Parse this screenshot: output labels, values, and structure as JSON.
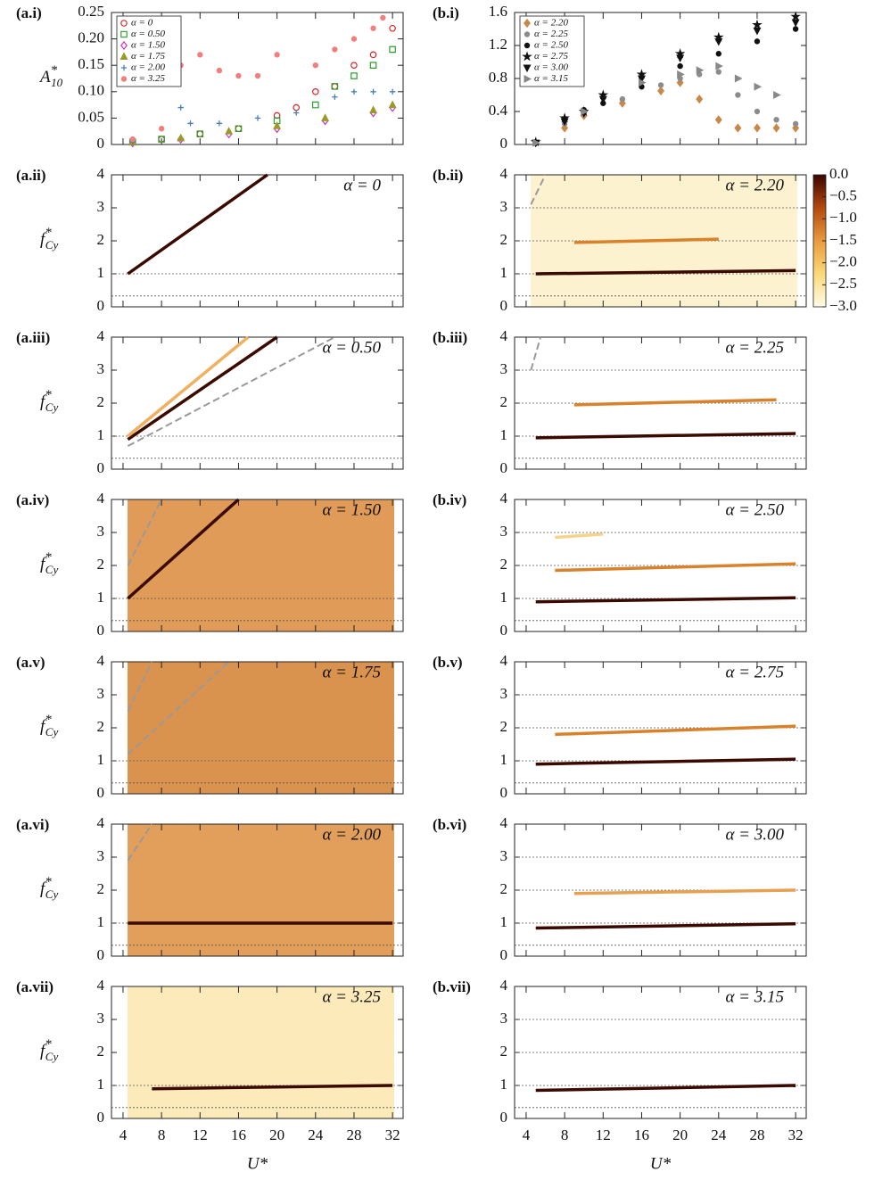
{
  "chart_data": [
    {
      "type": "scatter",
      "panel": "(a.i)",
      "ylabel": "A",
      "ylabel_sup": "*",
      "ylabel_sub": "10",
      "xlim": [
        2.8,
        33.1
      ],
      "xticks": [
        4,
        8,
        12,
        16,
        20,
        24,
        28,
        32
      ],
      "ylim": [
        0,
        0.25
      ],
      "yticks": [
        0,
        0.05,
        {
          "value": 0.1,
          "label": "0.10"
        },
        0.15,
        {
          "value": 0.2,
          "label": "0.20"
        },
        0.25
      ],
      "legend": "top-left",
      "series": [
        {
          "name": "α = 0",
          "color": "#d62728",
          "marker": "circle-open",
          "x": [
            5,
            8,
            12,
            16,
            20,
            22,
            24,
            26,
            28,
            30,
            32
          ],
          "values": [
            0.005,
            0.01,
            0.02,
            0.03,
            0.055,
            0.07,
            0.1,
            0.11,
            0.15,
            0.17,
            0.22
          ]
        },
        {
          "name": "α = 0.50",
          "color": "#2ca02c",
          "marker": "square-open",
          "x": [
            5,
            8,
            12,
            16,
            20,
            24,
            26,
            28,
            30,
            32
          ],
          "values": [
            0.005,
            0.01,
            0.02,
            0.03,
            0.045,
            0.075,
            0.11,
            0.13,
            0.15,
            0.18
          ]
        },
        {
          "name": "α = 1.50",
          "color": "#cc33cc",
          "marker": "diamond-open",
          "x": [
            5,
            10,
            15,
            20,
            25,
            30,
            32
          ],
          "values": [
            0.003,
            0.01,
            0.02,
            0.03,
            0.045,
            0.06,
            0.07
          ]
        },
        {
          "name": "α = 1.75",
          "color": "#9a9a2a",
          "marker": "triangle",
          "x": [
            5,
            10,
            15,
            20,
            25,
            30,
            32
          ],
          "values": [
            0.004,
            0.012,
            0.025,
            0.035,
            0.05,
            0.065,
            0.075
          ]
        },
        {
          "name": "α = 2.00",
          "color": "#4a7fb5",
          "marker": "plus",
          "x": [
            5,
            10,
            11,
            14,
            18,
            22,
            26,
            28,
            30,
            32
          ],
          "values": [
            0.005,
            0.07,
            0.04,
            0.04,
            0.05,
            0.06,
            0.09,
            0.1,
            0.1,
            0.1
          ]
        },
        {
          "name": "α = 3.25",
          "color": "#f08080",
          "marker": "dot",
          "x": [
            5,
            8,
            10,
            12,
            14,
            16,
            18,
            20,
            24,
            26,
            28,
            30,
            31
          ],
          "values": [
            0.01,
            0.03,
            0.15,
            0.17,
            0.14,
            0.13,
            0.13,
            0.17,
            0.15,
            0.18,
            0.2,
            0.22,
            0.24
          ]
        }
      ]
    },
    {
      "type": "scatter",
      "panel": "(b.i)",
      "xlim": [
        2.8,
        33.1
      ],
      "xticks": [
        4,
        8,
        12,
        16,
        20,
        24,
        28,
        32
      ],
      "ylim": [
        0,
        1.6
      ],
      "yticks": [
        0,
        0.4,
        0.8,
        1.2,
        1.6
      ],
      "legend": "top-left",
      "series": [
        {
          "name": "α = 2.20",
          "color": "#c8884a",
          "marker": "diamond",
          "x": [
            5,
            8,
            10,
            14,
            18,
            20,
            22,
            24,
            26,
            28,
            30,
            32
          ],
          "values": [
            0.02,
            0.2,
            0.35,
            0.5,
            0.65,
            0.75,
            0.55,
            0.3,
            0.2,
            0.2,
            0.2,
            0.2
          ]
        },
        {
          "name": "α = 2.25",
          "color": "#8c8c8c",
          "marker": "dot",
          "x": [
            5,
            8,
            10,
            14,
            18,
            20,
            22,
            24,
            26,
            28,
            30,
            32
          ],
          "values": [
            0.02,
            0.25,
            0.38,
            0.55,
            0.72,
            0.8,
            0.85,
            0.88,
            0.6,
            0.4,
            0.3,
            0.25
          ]
        },
        {
          "name": "α = 2.50",
          "color": "#111111",
          "marker": "dot",
          "x": [
            5,
            8,
            10,
            12,
            16,
            20,
            24,
            28,
            32
          ],
          "values": [
            0.02,
            0.3,
            0.42,
            0.5,
            0.7,
            0.95,
            1.1,
            1.25,
            1.4
          ]
        },
        {
          "name": "α = 2.75",
          "color": "#111111",
          "marker": "star",
          "x": [
            5,
            8,
            10,
            12,
            16,
            20,
            24,
            28,
            32
          ],
          "values": [
            0.03,
            0.32,
            0.4,
            0.6,
            0.85,
            1.1,
            1.3,
            1.45,
            1.55
          ]
        },
        {
          "name": "α = 3.00",
          "color": "#111111",
          "marker": "triangle-down",
          "x": [
            5,
            8,
            10,
            12,
            16,
            20,
            24,
            28,
            32
          ],
          "values": [
            0.02,
            0.28,
            0.38,
            0.55,
            0.8,
            1.05,
            1.25,
            1.38,
            1.48
          ]
        },
        {
          "name": "α = 3.15",
          "color": "#888888",
          "marker": "triangle-right",
          "x": [
            5,
            10,
            16,
            20,
            22,
            24,
            26,
            28,
            30
          ],
          "values": [
            0.02,
            0.4,
            0.75,
            0.85,
            0.9,
            0.95,
            0.8,
            0.7,
            0.6
          ]
        }
      ]
    },
    {
      "type": "spectrogram",
      "panel": "(a.ii)",
      "annotation": "α = 0",
      "ylabel": "f",
      "ylabel_sup": "*",
      "ylabel_sub": "Cy",
      "xlim": [
        2.8,
        33.1
      ],
      "xticks": [
        4,
        8,
        12,
        16,
        20,
        24,
        28,
        32
      ],
      "ylim": [
        0,
        4
      ],
      "yticks": [
        0,
        1,
        2,
        3,
        4
      ],
      "hlines": [
        1,
        0.33
      ],
      "traces": [
        {
          "color": "#3a0a00",
          "dash": false,
          "x": [
            4.5,
            19
          ],
          "values": [
            1,
            4
          ]
        }
      ]
    },
    {
      "type": "spectrogram",
      "panel": "(b.ii)",
      "annotation": "α = 2.20",
      "xlim": [
        2.8,
        33.1
      ],
      "xticks": [
        4,
        8,
        12,
        16,
        20,
        24,
        28,
        32
      ],
      "ylim": [
        0,
        4
      ],
      "yticks": [
        0,
        1,
        2,
        3,
        4
      ],
      "hlines": [
        1,
        0.33,
        2,
        3
      ],
      "background": "#fdf0c8",
      "traces": [
        {
          "color": "#3a0a00",
          "dash": false,
          "x": [
            5,
            32
          ],
          "values": [
            1,
            1.1
          ]
        },
        {
          "color": "#d9822b",
          "dash": false,
          "x": [
            9,
            24
          ],
          "values": [
            1.95,
            2.05
          ]
        },
        {
          "color": "#999999",
          "dash": true,
          "x": [
            4.5,
            6
          ],
          "values": [
            3.1,
            4
          ]
        }
      ],
      "colorbar": {
        "lim": [
          -3,
          0
        ],
        "colors": [
          "#fffbe6",
          "#fbd97a",
          "#e99a3c",
          "#b4490f",
          "#3a0500"
        ],
        "ticks": [
          {
            "value": 0,
            "label": "0.0"
          },
          {
            "value": -0.5,
            "label": "−0.5"
          },
          {
            "value": -1,
            "label": "−1.0"
          },
          {
            "value": -1.5,
            "label": "−1.5"
          },
          {
            "value": -2,
            "label": "−2.0"
          },
          {
            "value": -2.5,
            "label": "−2.5"
          },
          {
            "value": -3,
            "label": "−3.0"
          }
        ]
      }
    },
    {
      "type": "spectrogram",
      "panel": "(a.iii)",
      "annotation": "α = 0.50",
      "ylabel": "f",
      "ylabel_sup": "*",
      "ylabel_sub": "Cy",
      "xlim": [
        2.8,
        33.1
      ],
      "xticks": [
        4,
        8,
        12,
        16,
        20,
        24,
        28,
        32
      ],
      "ylim": [
        0,
        4
      ],
      "yticks": [
        0,
        1,
        2,
        3,
        4
      ],
      "hlines": [
        1,
        0.33
      ],
      "traces": [
        {
          "color": "#3a0a00",
          "dash": false,
          "x": [
            4.5,
            20
          ],
          "values": [
            0.9,
            4
          ]
        },
        {
          "color": "#f0b060",
          "dash": false,
          "x": [
            4.5,
            17
          ],
          "values": [
            1,
            4
          ]
        },
        {
          "color": "#999999",
          "dash": true,
          "x": [
            4.5,
            26
          ],
          "values": [
            0.7,
            4
          ]
        }
      ]
    },
    {
      "type": "spectrogram",
      "panel": "(b.iii)",
      "annotation": "α = 2.25",
      "xlim": [
        2.8,
        33.1
      ],
      "xticks": [
        4,
        8,
        12,
        16,
        20,
        24,
        28,
        32
      ],
      "ylim": [
        0,
        4
      ],
      "yticks": [
        0,
        1,
        2,
        3,
        4
      ],
      "hlines": [
        1,
        0.33,
        2,
        3
      ],
      "traces": [
        {
          "color": "#3a0a00",
          "dash": false,
          "x": [
            5,
            32
          ],
          "values": [
            0.95,
            1.08
          ]
        },
        {
          "color": "#d9822b",
          "dash": false,
          "x": [
            9,
            30
          ],
          "values": [
            1.95,
            2.1
          ]
        },
        {
          "color": "#999999",
          "dash": true,
          "x": [
            4.5,
            5.5
          ],
          "values": [
            3,
            4
          ]
        }
      ]
    },
    {
      "type": "spectrogram",
      "panel": "(a.iv)",
      "annotation": "α = 1.50",
      "ylabel": "f",
      "ylabel_sup": "*",
      "ylabel_sub": "Cy",
      "xlim": [
        2.8,
        33.1
      ],
      "xticks": [
        4,
        8,
        12,
        16,
        20,
        24,
        28,
        32
      ],
      "ylim": [
        0,
        4
      ],
      "yticks": [
        0,
        1,
        2,
        3,
        4
      ],
      "hlines": [
        1,
        0.33
      ],
      "background": "#d98a3a",
      "traces": [
        {
          "color": "#3a0a00",
          "dash": false,
          "x": [
            4.5,
            16
          ],
          "values": [
            1,
            4
          ]
        },
        {
          "color": "#999999",
          "dash": true,
          "x": [
            4.5,
            8
          ],
          "values": [
            2,
            4
          ]
        }
      ]
    },
    {
      "type": "spectrogram",
      "panel": "(b.iv)",
      "annotation": "α = 2.50",
      "xlim": [
        2.8,
        33.1
      ],
      "xticks": [
        4,
        8,
        12,
        16,
        20,
        24,
        28,
        32
      ],
      "ylim": [
        0,
        4
      ],
      "yticks": [
        0,
        1,
        2,
        3,
        4
      ],
      "hlines": [
        1,
        0.33,
        2,
        3
      ],
      "traces": [
        {
          "color": "#3a0a00",
          "dash": false,
          "x": [
            5,
            32
          ],
          "values": [
            0.9,
            1.02
          ]
        },
        {
          "color": "#d9822b",
          "dash": false,
          "x": [
            7,
            32
          ],
          "values": [
            1.85,
            2.05
          ]
        },
        {
          "color": "#f5d38a",
          "dash": false,
          "x": [
            7,
            12
          ],
          "values": [
            2.85,
            2.95
          ]
        }
      ]
    },
    {
      "type": "spectrogram",
      "panel": "(a.v)",
      "annotation": "α = 1.75",
      "ylabel": "f",
      "ylabel_sup": "*",
      "ylabel_sub": "Cy",
      "xlim": [
        2.8,
        33.1
      ],
      "xticks": [
        4,
        8,
        12,
        16,
        20,
        24,
        28,
        32
      ],
      "ylim": [
        0,
        4
      ],
      "yticks": [
        0,
        1,
        2,
        3,
        4
      ],
      "hlines": [
        1,
        0.33
      ],
      "background": "#d37f30",
      "traces": [
        {
          "color": "#999999",
          "dash": true,
          "x": [
            4.5,
            15
          ],
          "values": [
            1.2,
            4
          ]
        },
        {
          "color": "#999999",
          "dash": true,
          "x": [
            4.5,
            7
          ],
          "values": [
            2.5,
            4
          ]
        }
      ]
    },
    {
      "type": "spectrogram",
      "panel": "(b.v)",
      "annotation": "α = 2.75",
      "xlim": [
        2.8,
        33.1
      ],
      "xticks": [
        4,
        8,
        12,
        16,
        20,
        24,
        28,
        32
      ],
      "ylim": [
        0,
        4
      ],
      "yticks": [
        0,
        1,
        2,
        3,
        4
      ],
      "hlines": [
        1,
        0.33,
        2,
        3
      ],
      "traces": [
        {
          "color": "#3a0a00",
          "dash": false,
          "x": [
            5,
            32
          ],
          "values": [
            0.9,
            1.05
          ]
        },
        {
          "color": "#d9822b",
          "dash": false,
          "x": [
            7,
            32
          ],
          "values": [
            1.8,
            2.05
          ]
        }
      ]
    },
    {
      "type": "spectrogram",
      "panel": "(a.vi)",
      "annotation": "α = 2.00",
      "ylabel": "f",
      "ylabel_sup": "*",
      "ylabel_sub": "Cy",
      "xlim": [
        2.8,
        33.1
      ],
      "xticks": [
        4,
        8,
        12,
        16,
        20,
        24,
        28,
        32
      ],
      "ylim": [
        0,
        4
      ],
      "yticks": [
        0,
        1,
        2,
        3,
        4
      ],
      "hlines": [
        1,
        0.33
      ],
      "background": "#dc8e3e",
      "traces": [
        {
          "color": "#3a0a00",
          "dash": false,
          "x": [
            4.5,
            32
          ],
          "values": [
            1,
            1
          ]
        },
        {
          "color": "#999999",
          "dash": true,
          "x": [
            4.5,
            7
          ],
          "values": [
            2.9,
            4
          ]
        }
      ]
    },
    {
      "type": "spectrogram",
      "panel": "(b.vi)",
      "annotation": "α = 3.00",
      "xlim": [
        2.8,
        33.1
      ],
      "xticks": [
        4,
        8,
        12,
        16,
        20,
        24,
        28,
        32
      ],
      "ylim": [
        0,
        4
      ],
      "yticks": [
        0,
        1,
        2,
        3,
        4
      ],
      "hlines": [
        1,
        0.33,
        2,
        3
      ],
      "traces": [
        {
          "color": "#3a0a00",
          "dash": false,
          "x": [
            5,
            32
          ],
          "values": [
            0.85,
            0.98
          ]
        },
        {
          "color": "#e6a050",
          "dash": false,
          "x": [
            9,
            32
          ],
          "values": [
            1.9,
            2
          ]
        }
      ]
    },
    {
      "type": "spectrogram",
      "panel": "(a.vii)",
      "annotation": "α = 3.25",
      "ylabel": "f",
      "ylabel_sup": "*",
      "ylabel_sub": "Cy",
      "xlabel": "U*",
      "xlim": [
        2.8,
        33.1
      ],
      "xticks": [
        4,
        8,
        12,
        16,
        20,
        24,
        28,
        32
      ],
      "ylim": [
        0,
        4
      ],
      "yticks": [
        0,
        1,
        2,
        3,
        4
      ],
      "hlines": [
        1,
        0.33
      ],
      "background": "#fbe6ae",
      "traces": [
        {
          "color": "#3a0a00",
          "dash": false,
          "x": [
            7,
            32
          ],
          "values": [
            0.9,
            1
          ]
        }
      ]
    },
    {
      "type": "spectrogram",
      "panel": "(b.vii)",
      "annotation": "α = 3.15",
      "xlabel": "U*",
      "xlim": [
        2.8,
        33.1
      ],
      "xticks": [
        4,
        8,
        12,
        16,
        20,
        24,
        28,
        32
      ],
      "ylim": [
        0,
        4
      ],
      "yticks": [
        0,
        1,
        2,
        3,
        4
      ],
      "hlines": [
        1,
        0.33,
        2,
        3
      ],
      "traces": [
        {
          "color": "#3a0a00",
          "dash": false,
          "x": [
            5,
            32
          ],
          "values": [
            0.85,
            1
          ]
        }
      ]
    }
  ]
}
